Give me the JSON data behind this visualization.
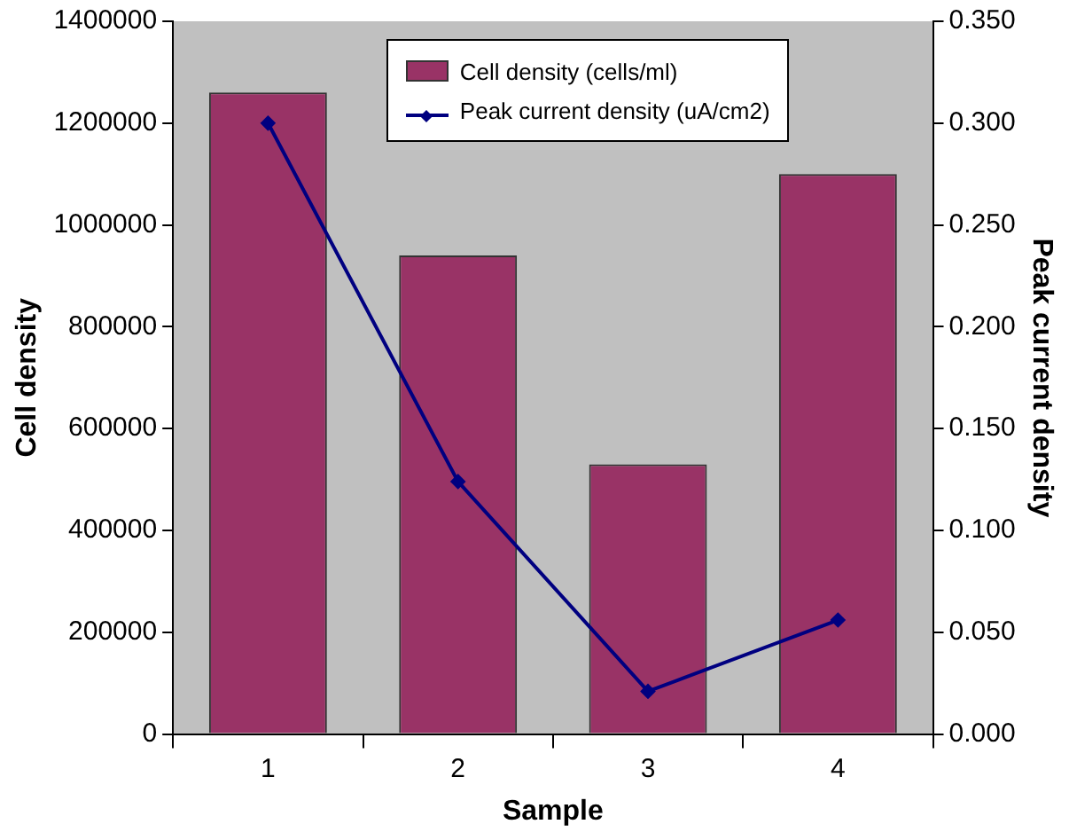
{
  "chart_data": {
    "type": "bar",
    "xlabel": "Sample",
    "ylabel": "Cell density",
    "y2label": "Peak current density",
    "categories": [
      "1",
      "2",
      "3",
      "4"
    ],
    "series": [
      {
        "name": "Cell density (cells/ml)",
        "color": "#993366",
        "values": [
          1260000,
          940000,
          530000,
          1100000
        ]
      },
      {
        "name": "Peak current density (uA/cm2)",
        "type": "line",
        "axis": "y2",
        "color": "#000080",
        "values": [
          0.3,
          0.124,
          0.021,
          0.056
        ]
      }
    ],
    "ylim": [
      0,
      1400000
    ],
    "yticks": [
      0,
      200000,
      400000,
      600000,
      800000,
      1000000,
      1200000,
      1400000
    ],
    "y2lim": [
      0,
      0.35
    ],
    "y2ticks": [
      {
        "value": 0,
        "label": "0.000"
      },
      {
        "value": 0.05,
        "label": "0.050"
      },
      {
        "value": 0.1,
        "label": "0.100"
      },
      {
        "value": 0.15,
        "label": "0.150"
      },
      {
        "value": 0.2,
        "label": "0.200"
      },
      {
        "value": 0.25,
        "label": "0.250"
      },
      {
        "value": 0.3,
        "label": "0.300"
      },
      {
        "value": 0.35,
        "label": "0.350"
      }
    ],
    "grid": false,
    "legend": "top",
    "marker": "diamond",
    "line_style": "solid"
  }
}
